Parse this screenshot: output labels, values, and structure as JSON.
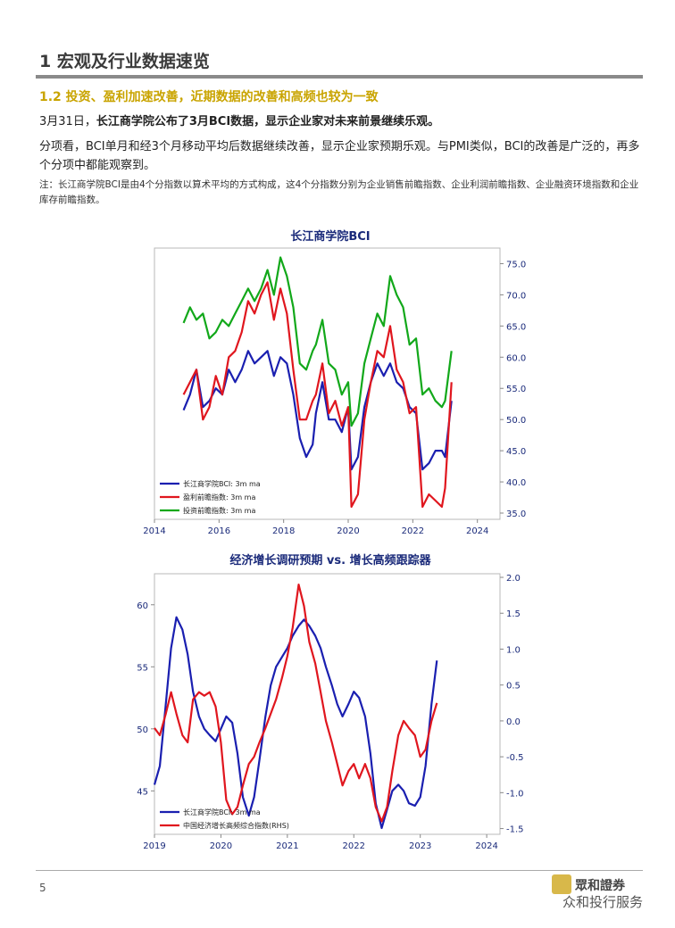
{
  "header": {
    "title": "1 宏观及行业数据速览"
  },
  "subheading": "1.2 投资、盈利加速改善，近期数据的改善和高频也较为一致",
  "para1": {
    "prefix": "3月31日，",
    "bold": "长江商学院公布了3月BCI数据，显示企业家对未来前景继续乐观。"
  },
  "para2": "分项看，BCI单月和经3个月移动平均后数据继续改善，显示企业家预期乐观。与PMI类似，BCI的改善是广泛的，再多个分项中都能观察到。",
  "note": "注：长江商学院BCI是由4个分指数以算术平均的方式构成，这4个分指数分别为企业销售前瞻指数、企业利润前瞻指数、企业融资环境指数和企业库存前瞻指数。",
  "footer": {
    "page": "5",
    "brand_name": "眾和證券",
    "brand_sub": "众和投行服务"
  },
  "chart_data": [
    {
      "type": "line",
      "title": "长江商学院BCI",
      "x_ticks": [
        "2014",
        "2016",
        "2018",
        "2020",
        "2022",
        "2024"
      ],
      "xlim": [
        2014,
        2024.7
      ],
      "y_ticks_right": [
        "35.0",
        "40.0",
        "45.0",
        "50.0",
        "55.0",
        "60.0",
        "65.0",
        "70.0",
        "75.0"
      ],
      "ylim": [
        34,
        77.5
      ],
      "legend_position": "bottom-left",
      "series": [
        {
          "name": "长江商学院BCI: 3m ma",
          "color": "#1a1fb0",
          "x": [
            2014.9,
            2015.1,
            2015.3,
            2015.5,
            2015.7,
            2015.9,
            2016.1,
            2016.3,
            2016.5,
            2016.7,
            2016.9,
            2017.1,
            2017.3,
            2017.5,
            2017.7,
            2017.9,
            2018.1,
            2018.3,
            2018.5,
            2018.7,
            2018.9,
            2019.0,
            2019.2,
            2019.4,
            2019.6,
            2019.8,
            2020.0,
            2020.1,
            2020.3,
            2020.5,
            2020.7,
            2020.9,
            2021.1,
            2021.3,
            2021.5,
            2021.7,
            2021.9,
            2022.1,
            2022.3,
            2022.5,
            2022.7,
            2022.9,
            2023.0,
            2023.2
          ],
          "y": [
            51.5,
            54,
            58,
            52,
            53,
            55,
            54,
            58,
            56,
            58,
            61,
            59,
            60,
            61,
            57,
            60,
            59,
            54,
            47,
            44,
            46,
            51,
            56,
            50,
            50,
            48,
            52,
            42,
            44,
            52,
            56,
            59,
            57,
            59,
            56,
            55,
            52,
            51,
            42,
            43,
            45,
            45,
            44,
            53
          ]
        },
        {
          "name": "盈利前瞻指数: 3m ma",
          "color": "#e0161e",
          "x": [
            2014.9,
            2015.1,
            2015.3,
            2015.5,
            2015.7,
            2015.9,
            2016.1,
            2016.3,
            2016.5,
            2016.7,
            2016.9,
            2017.1,
            2017.3,
            2017.5,
            2017.7,
            2017.9,
            2018.1,
            2018.3,
            2018.5,
            2018.7,
            2018.9,
            2019.0,
            2019.2,
            2019.4,
            2019.6,
            2019.8,
            2020.0,
            2020.1,
            2020.3,
            2020.5,
            2020.7,
            2020.9,
            2021.1,
            2021.3,
            2021.5,
            2021.7,
            2021.9,
            2022.1,
            2022.3,
            2022.5,
            2022.7,
            2022.9,
            2023.0,
            2023.2
          ],
          "y": [
            54,
            56,
            58,
            50,
            52,
            57,
            54,
            60,
            61,
            64,
            69,
            67,
            70,
            72,
            66,
            71,
            67,
            58,
            50,
            50,
            53,
            54,
            59,
            51,
            53,
            49,
            52,
            36,
            38,
            50,
            56,
            61,
            60,
            65,
            58,
            56,
            51,
            52,
            36,
            38,
            37,
            36,
            39,
            56
          ]
        },
        {
          "name": "投资前瞻指数: 3m ma",
          "color": "#12a81a",
          "x": [
            2014.9,
            2015.1,
            2015.3,
            2015.5,
            2015.7,
            2015.9,
            2016.1,
            2016.3,
            2016.5,
            2016.7,
            2016.9,
            2017.1,
            2017.3,
            2017.5,
            2017.7,
            2017.9,
            2018.1,
            2018.3,
            2018.5,
            2018.7,
            2018.9,
            2019.0,
            2019.2,
            2019.4,
            2019.6,
            2019.8,
            2020.0,
            2020.1,
            2020.3,
            2020.5,
            2020.7,
            2020.9,
            2021.1,
            2021.3,
            2021.5,
            2021.7,
            2021.9,
            2022.1,
            2022.3,
            2022.5,
            2022.7,
            2022.9,
            2023.0,
            2023.2
          ],
          "y": [
            65.5,
            68,
            66,
            67,
            63,
            64,
            66,
            65,
            67,
            69,
            71,
            69,
            71,
            74,
            70,
            76,
            73,
            68,
            59,
            58,
            61,
            62,
            66,
            59,
            58,
            54,
            56,
            49,
            51,
            59,
            63,
            67,
            65,
            73,
            70,
            68,
            62,
            63,
            54,
            55,
            53,
            52,
            53,
            61
          ]
        }
      ]
    },
    {
      "type": "line",
      "title": "经济增长调研预期 vs. 增长高频跟踪器",
      "x_ticks": [
        "2019",
        "2020",
        "2021",
        "2022",
        "2023",
        "2024"
      ],
      "xlim": [
        2019,
        2024.2
      ],
      "y_ticks_left": [
        "45",
        "50",
        "55",
        "60"
      ],
      "ylim_left": [
        41.5,
        62.5
      ],
      "y_ticks_right": [
        "-1.5",
        "-1.0",
        "-0.5",
        "0.0",
        "0.5",
        "1.0",
        "1.5",
        "2.0"
      ],
      "ylim_right": [
        -1.58,
        2.05
      ],
      "legend_position": "bottom-left",
      "series": [
        {
          "name": "长江商学院BCI: 3m ma",
          "color": "#1a1fb0",
          "axis": "left",
          "x": [
            2019.0,
            2019.08,
            2019.17,
            2019.25,
            2019.33,
            2019.42,
            2019.5,
            2019.58,
            2019.67,
            2019.75,
            2019.83,
            2019.92,
            2020.0,
            2020.08,
            2020.17,
            2020.25,
            2020.33,
            2020.42,
            2020.5,
            2020.58,
            2020.67,
            2020.75,
            2020.83,
            2020.92,
            2021.0,
            2021.08,
            2021.17,
            2021.25,
            2021.33,
            2021.42,
            2021.5,
            2021.58,
            2021.67,
            2021.75,
            2021.83,
            2021.92,
            2022.0,
            2022.08,
            2022.17,
            2022.25,
            2022.33,
            2022.42,
            2022.5,
            2022.58,
            2022.67,
            2022.75,
            2022.83,
            2022.92,
            2023.0,
            2023.08,
            2023.17,
            2023.25
          ],
          "y": [
            45.5,
            47,
            52,
            56.5,
            59,
            58,
            56,
            53,
            51,
            50,
            49.5,
            49,
            50,
            51,
            50.5,
            48,
            44.5,
            43,
            44.5,
            47.5,
            51,
            53.5,
            55,
            55.8,
            56.5,
            57.5,
            58.3,
            58.8,
            58.3,
            57.5,
            56.5,
            55,
            53.5,
            52,
            51,
            52,
            53,
            52.5,
            51,
            48,
            44,
            42,
            43.5,
            45,
            45.5,
            45,
            44,
            43.8,
            44.5,
            47,
            52,
            55.5
          ]
        },
        {
          "name": "中国经济增长高频综合指数(RHS)",
          "color": "#e0161e",
          "axis": "right",
          "x": [
            2019.0,
            2019.08,
            2019.17,
            2019.25,
            2019.33,
            2019.42,
            2019.5,
            2019.58,
            2019.67,
            2019.75,
            2019.83,
            2019.92,
            2020.0,
            2020.08,
            2020.17,
            2020.25,
            2020.33,
            2020.42,
            2020.5,
            2020.58,
            2020.67,
            2020.75,
            2020.83,
            2020.92,
            2021.0,
            2021.08,
            2021.17,
            2021.25,
            2021.33,
            2021.42,
            2021.5,
            2021.58,
            2021.67,
            2021.75,
            2021.83,
            2021.92,
            2022.0,
            2022.08,
            2022.17,
            2022.25,
            2022.33,
            2022.42,
            2022.5,
            2022.58,
            2022.67,
            2022.75,
            2022.83,
            2022.92,
            2023.0,
            2023.08,
            2023.17,
            2023.25
          ],
          "y": [
            -0.1,
            -0.2,
            0.1,
            0.4,
            0.1,
            -0.2,
            -0.3,
            0.3,
            0.4,
            0.35,
            0.4,
            0.2,
            -0.3,
            -1.1,
            -1.3,
            -1.2,
            -0.9,
            -0.6,
            -0.5,
            -0.3,
            -0.1,
            0.1,
            0.3,
            0.6,
            0.9,
            1.3,
            1.9,
            1.6,
            1.1,
            0.8,
            0.4,
            0.0,
            -0.3,
            -0.6,
            -0.9,
            -0.7,
            -0.6,
            -0.8,
            -0.6,
            -0.8,
            -1.2,
            -1.4,
            -1.2,
            -0.7,
            -0.2,
            0.0,
            -0.1,
            -0.2,
            -0.5,
            -0.4,
            0.0,
            0.25
          ]
        }
      ]
    }
  ]
}
